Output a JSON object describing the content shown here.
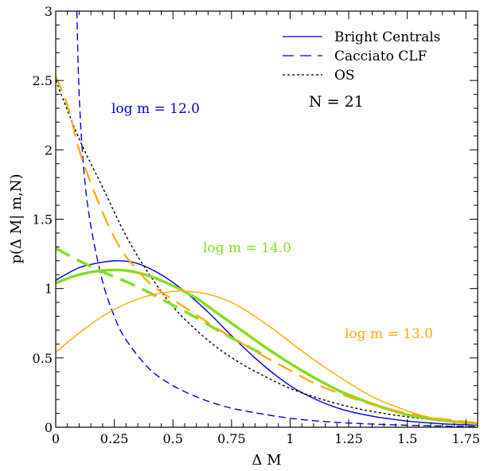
{
  "chart_data": {
    "type": "line",
    "xlabel": "Δ M",
    "ylabel": "p(Δ M| m,N)",
    "xlim": [
      0,
      1.8
    ],
    "ylim": [
      0,
      3
    ],
    "x_ticks": [
      0,
      0.25,
      0.5,
      0.75,
      1,
      1.25,
      1.5,
      1.75
    ],
    "x_tick_labels": [
      "0",
      "0.25",
      "0.5",
      "0.75",
      "1",
      "1.25",
      "1.5",
      "1.75"
    ],
    "y_ticks": [
      0,
      0.5,
      1,
      1.5,
      2,
      2.5,
      3
    ],
    "y_tick_labels": [
      "0",
      "0.5",
      "1",
      "1.5",
      "2",
      "2.5",
      "3"
    ],
    "grid": false,
    "legend": {
      "placement": "top-right",
      "entries": [
        {
          "label": "Bright Centrals",
          "style": "solid",
          "color": "#0000dd"
        },
        {
          "label": "Cacciato CLF",
          "style": "dashed",
          "color": "#0000dd"
        },
        {
          "label": "OS",
          "style": "dotted",
          "color": "#000000"
        }
      ]
    },
    "annotations": {
      "n_label": "N = 21",
      "groups": [
        {
          "label": "log m = 12.0",
          "color": "#0000dd"
        },
        {
          "label": "log m = 14.0",
          "color": "#88dd22"
        },
        {
          "label": "log m = 13.0",
          "color": "#ffaa00"
        }
      ]
    },
    "series": [
      {
        "group": "log m = 12.0",
        "style": "solid",
        "color": "#0000dd",
        "x": [
          0,
          0.1,
          0.2,
          0.27,
          0.35,
          0.45,
          0.55,
          0.65,
          0.75,
          0.85,
          0.95,
          1.05,
          1.2,
          1.35,
          1.5,
          1.65,
          1.8
        ],
        "y": [
          1.06,
          1.15,
          1.19,
          1.2,
          1.18,
          1.1,
          0.98,
          0.83,
          0.66,
          0.5,
          0.36,
          0.25,
          0.14,
          0.08,
          0.045,
          0.025,
          0.015
        ]
      },
      {
        "group": "log m = 12.0",
        "style": "dashed",
        "color": "#0000dd",
        "x": [
          0.09,
          0.1,
          0.12,
          0.15,
          0.2,
          0.25,
          0.3,
          0.4,
          0.5,
          0.6,
          0.7,
          0.8,
          1,
          1.2,
          1.4,
          1.6,
          1.8
        ],
        "y": [
          3.0,
          2.4,
          1.85,
          1.45,
          1.05,
          0.8,
          0.63,
          0.42,
          0.3,
          0.22,
          0.16,
          0.12,
          0.065,
          0.035,
          0.02,
          0.01,
          0.005
        ]
      },
      {
        "group": "log m = 12.0",
        "style": "dotted",
        "color": "#000000",
        "x": [
          0,
          0.1,
          0.2,
          0.3,
          0.4,
          0.5,
          0.6,
          0.7,
          0.8,
          0.9,
          1,
          1.1,
          1.2,
          1.3,
          1.4,
          1.5,
          1.6,
          1.7,
          1.8
        ],
        "y": [
          2.5,
          2.08,
          1.73,
          1.38,
          1.1,
          0.87,
          0.7,
          0.56,
          0.45,
          0.36,
          0.28,
          0.22,
          0.17,
          0.13,
          0.1,
          0.075,
          0.055,
          0.04,
          0.03
        ]
      },
      {
        "group": "log m = 14.0",
        "style": "solid",
        "color": "#88dd22",
        "x": [
          0,
          0.1,
          0.2,
          0.3,
          0.4,
          0.5,
          0.6,
          0.7,
          0.8,
          0.9,
          1,
          1.1,
          1.2,
          1.3,
          1.4,
          1.5,
          1.6,
          1.7,
          1.8
        ],
        "y": [
          1.04,
          1.1,
          1.13,
          1.13,
          1.09,
          1.02,
          0.93,
          0.81,
          0.69,
          0.57,
          0.46,
          0.36,
          0.27,
          0.2,
          0.14,
          0.09,
          0.06,
          0.04,
          0.025
        ]
      },
      {
        "group": "log m = 14.0",
        "style": "dashed",
        "color": "#88dd22",
        "x": [
          0,
          0.1,
          0.2,
          0.3,
          0.4,
          0.5,
          0.6,
          0.7,
          0.8,
          0.9
        ],
        "y": [
          1.29,
          1.2,
          1.12,
          1.05,
          0.97,
          0.88,
          0.79,
          0.69,
          0.6,
          0.51
        ]
      },
      {
        "group": "log m = 13.0",
        "style": "solid",
        "color": "#ffaa00",
        "x": [
          0,
          0.1,
          0.2,
          0.3,
          0.4,
          0.5,
          0.56,
          0.65,
          0.75,
          0.85,
          0.95,
          1.05,
          1.15,
          1.25,
          1.35,
          1.45,
          1.55,
          1.65,
          1.8
        ],
        "y": [
          0.54,
          0.68,
          0.8,
          0.89,
          0.95,
          0.98,
          0.98,
          0.96,
          0.9,
          0.8,
          0.68,
          0.55,
          0.43,
          0.32,
          0.22,
          0.15,
          0.09,
          0.055,
          0.025
        ]
      },
      {
        "group": "log m = 13.0",
        "style": "dashed",
        "color": "#ffaa00",
        "x": [
          0,
          0.05,
          0.1,
          0.15,
          0.2,
          0.25,
          0.3,
          0.4,
          0.5,
          0.6,
          0.7,
          0.8,
          0.9,
          1,
          1.1,
          1.2,
          1.3,
          1.4,
          1.5,
          1.6,
          1.7,
          1.8
        ],
        "y": [
          2.53,
          2.32,
          2.0,
          1.76,
          1.55,
          1.37,
          1.23,
          1.04,
          0.92,
          0.81,
          0.7,
          0.6,
          0.5,
          0.41,
          0.32,
          0.25,
          0.19,
          0.14,
          0.1,
          0.07,
          0.05,
          0.03
        ]
      }
    ]
  }
}
